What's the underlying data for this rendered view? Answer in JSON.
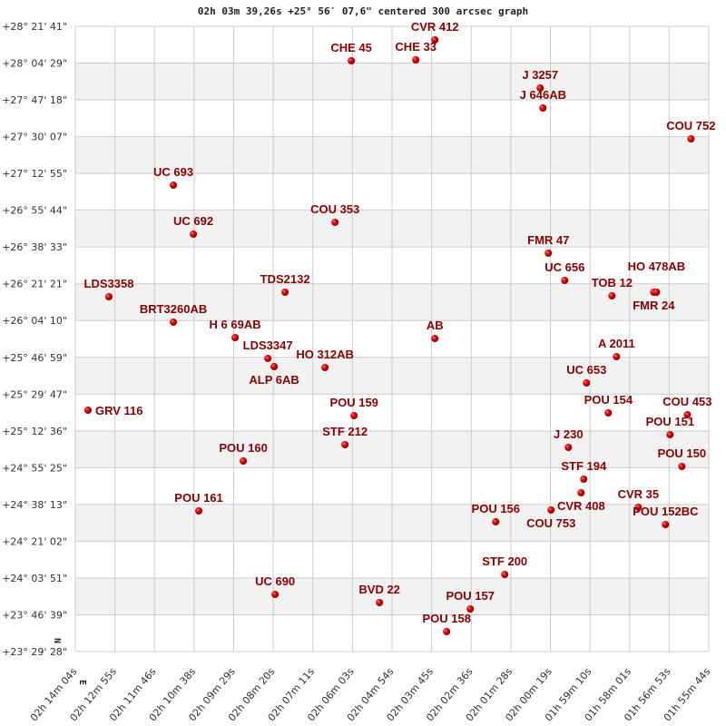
{
  "chart_data": {
    "type": "scatter",
    "title": "02h 03m 39,26s +25° 56′ 07,6\" centered 300 arcsec graph",
    "xlabel": "",
    "ylabel": "",
    "x_axis": "Right Ascension (hours, decreasing to the right)",
    "xlim_hours": [
      2.234444,
      1.928889
    ],
    "ylim_deg": [
      23.491111,
      28.361389
    ],
    "grid": true,
    "compass": {
      "north": "N",
      "east": "E"
    },
    "x_tick_labels": [
      "02h 14m 04s",
      "02h 12m 55s",
      "02h 11m 46s",
      "02h 10m 38s",
      "02h 09m 29s",
      "02h 08m 20s",
      "02h 07m 11s",
      "02h 06m 03s",
      "02h 04m 54s",
      "02h 03m 45s",
      "02h 02m 36s",
      "02h 01m 28s",
      "02h 00m 19s",
      "01h 59m 10s",
      "01h 58m 01s",
      "01h 56m 53s",
      "01h 55m 44s"
    ],
    "y_tick_labels": [
      "+28° 21' 41\"",
      "+28° 04' 29\"",
      "+27° 47' 18\"",
      "+27° 30' 07\"",
      "+27° 12' 55\"",
      "+26° 55' 44\"",
      "+26° 38' 33\"",
      "+26° 21' 21\"",
      "+26° 04' 10\"",
      "+25° 46' 59\"",
      "+25° 29' 47\"",
      "+25° 12' 36\"",
      "+24° 55' 25\"",
      "+24° 38' 13\"",
      "+24° 21' 02\"",
      "+24° 03' 51\"",
      "+23° 46' 39\"",
      "+23° 29' 28\""
    ],
    "colors": {
      "point": "#dd0000",
      "label": "#8b0000",
      "band": "#f2f2f2",
      "grid": "#cccccc"
    },
    "points": [
      {
        "label": "CVR 412",
        "ra": 2.061,
        "dec": 28.2554
      },
      {
        "label": "CHE  45",
        "ra": 2.10131,
        "dec": 28.0928
      },
      {
        "label": "CHE  33",
        "ra": 2.0702,
        "dec": 28.0999
      },
      {
        "label": "J  3257",
        "ra": 2.0102,
        "dec": 27.8807
      },
      {
        "label": "J  646AB",
        "ra": 2.00886,
        "dec": 27.7252
      },
      {
        "label": "COU 752",
        "ra": 1.93747,
        "dec": 27.4849
      },
      {
        "label": "UC  693",
        "ra": 2.18714,
        "dec": 27.1244
      },
      {
        "label": "UC  692",
        "ra": 2.1775,
        "dec": 26.7427
      },
      {
        "label": "COU 353",
        "ra": 2.10917,
        "dec": 26.8346
      },
      {
        "label": "FMR  47",
        "ra": 2.00625,
        "dec": 26.5942
      },
      {
        "label": "UC  656",
        "ra": 1.99836,
        "dec": 26.3822
      },
      {
        "label": "TOB  12",
        "ra": 1.97558,
        "dec": 26.262
      },
      {
        "label": "FMR  24",
        "ra": 1.95544,
        "dec": 26.2903
      },
      {
        "label": "HO 478AB",
        "ra": 1.95411,
        "dec": 26.2903
      },
      {
        "label": "LDS3358",
        "ra": 2.21825,
        "dec": 26.2549
      },
      {
        "label": "TDS2132",
        "ra": 2.13328,
        "dec": 26.2903
      },
      {
        "label": "BRT3260AB",
        "ra": 2.18714,
        "dec": 26.057
      },
      {
        "label": "H 6  69AB",
        "ra": 2.15736,
        "dec": 25.9368
      },
      {
        "label": "AB",
        "ra": 2.061,
        "dec": 25.9298
      },
      {
        "label": "LDS3347",
        "ra": 2.14158,
        "dec": 25.7743
      },
      {
        "label": "ALP   6AB",
        "ra": 2.13853,
        "dec": 25.7106
      },
      {
        "label": "HO  312AB",
        "ra": 2.114,
        "dec": 25.7036
      },
      {
        "label": "A  2011",
        "ra": 1.97339,
        "dec": 25.7884
      },
      {
        "label": "UC  653",
        "ra": 1.98786,
        "dec": 25.5834
      },
      {
        "label": "GRV 116",
        "ra": 2.22831,
        "dec": 25.3713
      },
      {
        "label": "POU 159",
        "ra": 2.09997,
        "dec": 25.3289
      },
      {
        "label": "POU 154",
        "ra": 1.97733,
        "dec": 25.3501
      },
      {
        "label": "COU 453",
        "ra": 1.93922,
        "dec": 25.336
      },
      {
        "label": "POU 151",
        "ra": 1.94756,
        "dec": 25.1805
      },
      {
        "label": "STF 212",
        "ra": 2.10436,
        "dec": 25.1027
      },
      {
        "label": "J  230",
        "ra": 1.99661,
        "dec": 25.0815
      },
      {
        "label": "POU 160",
        "ra": 2.15342,
        "dec": 24.9755
      },
      {
        "label": "POU 150",
        "ra": 1.94186,
        "dec": 24.9331
      },
      {
        "label": "STF 194",
        "ra": 1.98917,
        "dec": 24.8341
      },
      {
        "label": "CVR 408",
        "ra": 1.99047,
        "dec": 24.7281
      },
      {
        "label": "COU 753",
        "ra": 2.00494,
        "dec": 24.5938
      },
      {
        "label": "CVR  35",
        "ra": 1.96289,
        "dec": 24.615
      },
      {
        "label": "POU 152BC",
        "ra": 1.94975,
        "dec": 24.4807
      },
      {
        "label": "POU 161",
        "ra": 2.17489,
        "dec": 24.5867
      },
      {
        "label": "POU 156",
        "ra": 2.03164,
        "dec": 24.5019
      },
      {
        "label": "STF 200",
        "ra": 2.02728,
        "dec": 24.0919
      },
      {
        "label": "UC  690",
        "ra": 2.13808,
        "dec": 23.9364
      },
      {
        "label": "BVD  22",
        "ra": 2.08772,
        "dec": 23.8728
      },
      {
        "label": "POU 157",
        "ra": 2.04392,
        "dec": 23.8233
      },
      {
        "label": "POU 158",
        "ra": 2.05531,
        "dec": 23.6466
      }
    ]
  }
}
